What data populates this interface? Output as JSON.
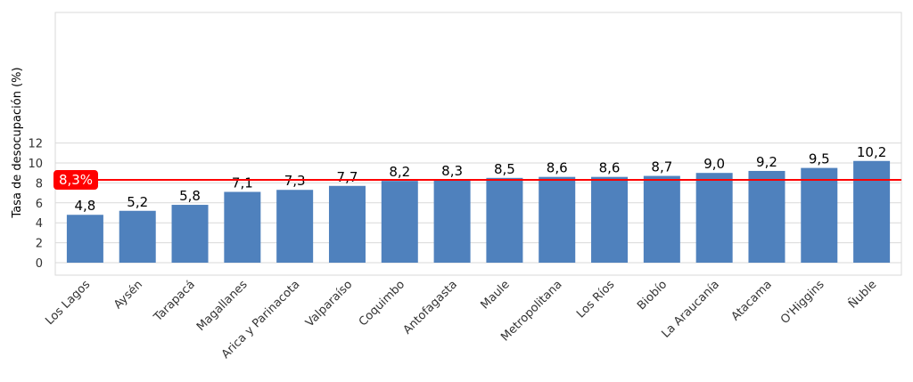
{
  "chart_data": {
    "type": "bar",
    "ylabel": "Tasa de desocupación (%)",
    "ylim": [
      0,
      12.5
    ],
    "yticks": [
      0,
      2,
      4,
      6,
      8,
      10,
      12
    ],
    "grid": true,
    "categories": [
      "Los Lagos",
      "Aysén",
      "Tarapacá",
      "Magallanes",
      "Arica y Parinacota",
      "Valparaíso",
      "Coquimbo",
      "Antofagasta",
      "Maule",
      "Metropolitana",
      "Los Ríos",
      "Biobío",
      "La Araucanía",
      "Atacama",
      "O'Higgins",
      "Ñuble"
    ],
    "values": [
      4.8,
      5.2,
      5.8,
      7.1,
      7.3,
      7.7,
      8.2,
      8.3,
      8.5,
      8.6,
      8.6,
      8.7,
      9.0,
      9.2,
      9.5,
      10.2
    ],
    "data_labels": [
      "4,8",
      "5,2",
      "5,8",
      "7,1",
      "7,3",
      "7,7",
      "8,2",
      "8,3",
      "8,5",
      "8,6",
      "8,6",
      "8,7",
      "9,0",
      "9,2",
      "9,5",
      "10,2"
    ],
    "reference_line": {
      "value": 8.3,
      "label": "8,3%",
      "color": "#ff0000"
    },
    "bar_color": "#4f81bd"
  }
}
